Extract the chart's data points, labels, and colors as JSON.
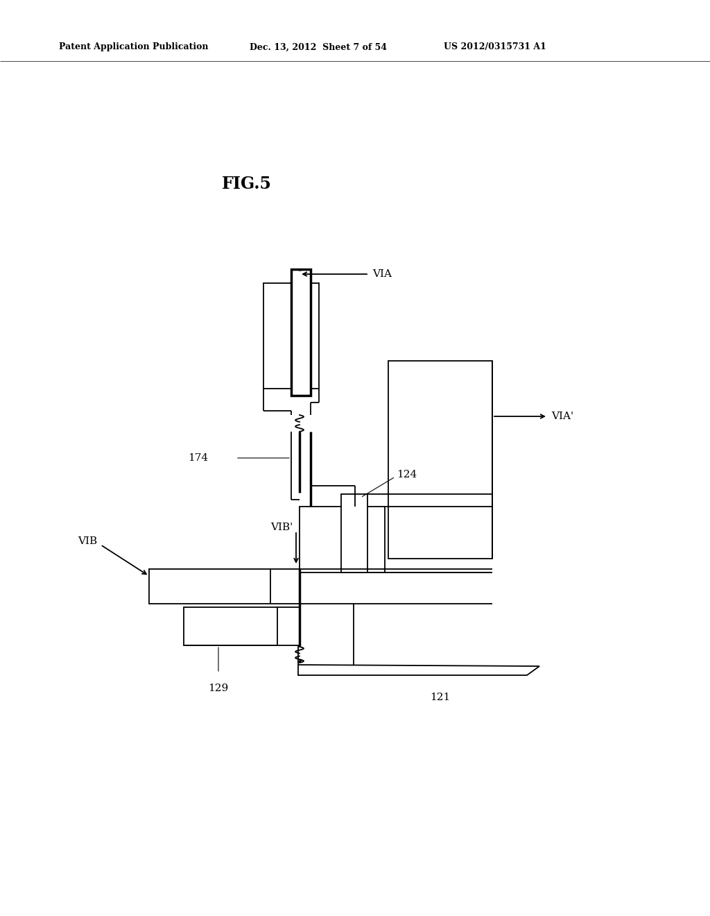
{
  "bg_color": "#ffffff",
  "line_color": "#000000",
  "header_text_left": "Patent Application Publication",
  "header_text_mid": "Dec. 13, 2012  Sheet 7 of 54",
  "header_text_right": "US 2012/0315731 A1",
  "fig_label": "FIG.5",
  "lw_thin": 1.3,
  "lw_thick": 2.5,
  "fs_label": 11,
  "fs_header": 9,
  "fs_fig": 17
}
